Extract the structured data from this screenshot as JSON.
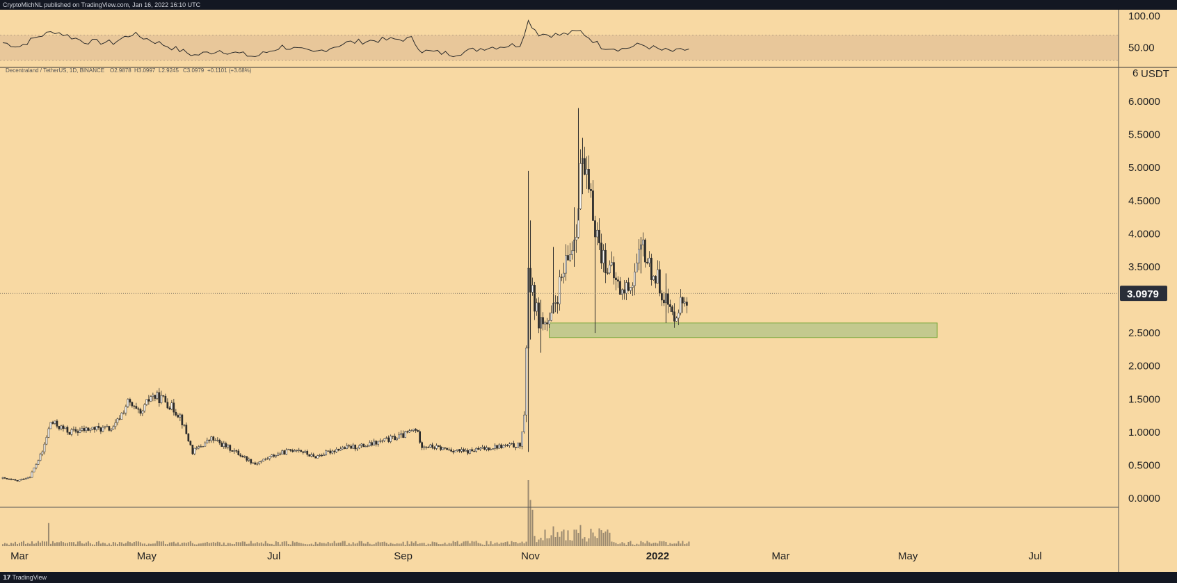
{
  "header": {
    "published_text": "CryptoMichNL published on TradingView.com, Jan 16, 2022 16:10 UTC"
  },
  "footer": {
    "logo": "\u0017",
    "brand": "TradingView"
  },
  "colors": {
    "background": "#f8d9a3",
    "candle": "#2a2a2a",
    "rsi_band": "#e8c79a",
    "support_zone_fill": "#c3c98e",
    "support_zone_stroke": "#7aa83c",
    "price_label_bg": "#2a2e39"
  },
  "chart_data": {
    "type": "candlestick",
    "symbol_line": "Decentraland / TetherUS, 1D, BINANCE",
    "ohlc": {
      "open": "O2.9878",
      "high": "H3.0997",
      "low": "L2.9245",
      "close": "C3.0979",
      "change": "+0.1101 (+3.68%)"
    },
    "currency_label": "USDT",
    "scale_marker": "6",
    "ylim": [
      -0.4,
      6.5
    ],
    "y_ticks": [
      "6.0000",
      "5.5000",
      "5.0000",
      "4.5000",
      "4.0000",
      "3.5000",
      "2.5000",
      "2.0000",
      "1.5000",
      "1.0000",
      "0.5000",
      "0.0000"
    ],
    "y_tick_values": [
      6.0,
      5.5,
      5.0,
      4.5,
      4.0,
      3.5,
      2.5,
      2.0,
      1.5,
      1.0,
      0.5,
      0.0
    ],
    "last_price_label": "3.0979",
    "last_price": 3.0979,
    "x_ticks": [
      {
        "label": "Mar",
        "date": "2021-03-01",
        "bold": false
      },
      {
        "label": "May",
        "date": "2021-05-01",
        "bold": false
      },
      {
        "label": "Jul",
        "date": "2021-07-01",
        "bold": false
      },
      {
        "label": "Sep",
        "date": "2021-09-01",
        "bold": false
      },
      {
        "label": "Nov",
        "date": "2021-11-01",
        "bold": false
      },
      {
        "label": "2022",
        "date": "2022-01-01",
        "bold": true
      },
      {
        "label": "Mar",
        "date": "2022-03-01",
        "bold": false
      },
      {
        "label": "May",
        "date": "2022-05-01",
        "bold": false
      },
      {
        "label": "Jul",
        "date": "2022-07-01",
        "bold": false
      }
    ],
    "x_range": [
      "2021-02-21",
      "2022-08-10"
    ],
    "support_zone": {
      "from": "2021-11-10",
      "to": "2022-05-15",
      "low": 2.43,
      "high": 2.65
    },
    "price_path": [
      [
        "2021-02-21",
        0.3
      ],
      [
        "2021-02-28",
        0.26
      ],
      [
        "2021-03-06",
        0.33
      ],
      [
        "2021-03-12",
        0.7
      ],
      [
        "2021-03-16",
        1.15
      ],
      [
        "2021-03-25",
        1.0
      ],
      [
        "2021-04-05",
        1.05
      ],
      [
        "2021-04-15",
        1.05
      ],
      [
        "2021-04-22",
        1.45
      ],
      [
        "2021-04-28",
        1.25
      ],
      [
        "2021-05-03",
        1.55
      ],
      [
        "2021-05-09",
        1.5
      ],
      [
        "2021-05-17",
        1.25
      ],
      [
        "2021-05-23",
        0.7
      ],
      [
        "2021-06-01",
        0.9
      ],
      [
        "2021-06-10",
        0.75
      ],
      [
        "2021-06-22",
        0.52
      ],
      [
        "2021-07-01",
        0.65
      ],
      [
        "2021-07-12",
        0.75
      ],
      [
        "2021-07-20",
        0.62
      ],
      [
        "2021-08-01",
        0.75
      ],
      [
        "2021-08-15",
        0.8
      ],
      [
        "2021-09-01",
        0.95
      ],
      [
        "2021-09-07",
        1.05
      ],
      [
        "2021-09-10",
        0.8
      ],
      [
        "2021-09-20",
        0.75
      ],
      [
        "2021-10-01",
        0.7
      ],
      [
        "2021-10-15",
        0.78
      ],
      [
        "2021-10-27",
        0.8
      ],
      [
        "2021-10-29",
        1.2
      ],
      [
        "2021-10-31",
        3.5
      ],
      [
        "2021-11-01",
        3.2
      ],
      [
        "2021-11-05",
        2.7
      ],
      [
        "2021-11-10",
        2.6
      ],
      [
        "2021-11-15",
        3.2
      ],
      [
        "2021-11-20",
        3.7
      ],
      [
        "2021-11-23",
        4.1
      ],
      [
        "2021-11-25",
        5.1
      ],
      [
        "2021-11-27",
        4.9
      ],
      [
        "2021-12-01",
        4.3
      ],
      [
        "2021-12-05",
        3.7
      ],
      [
        "2021-12-10",
        3.4
      ],
      [
        "2021-12-15",
        3.1
      ],
      [
        "2021-12-20",
        3.3
      ],
      [
        "2021-12-25",
        3.8
      ],
      [
        "2021-12-28",
        3.5
      ],
      [
        "2022-01-01",
        3.3
      ],
      [
        "2022-01-05",
        3.0
      ],
      [
        "2022-01-08",
        2.75
      ],
      [
        "2022-01-12",
        2.95
      ],
      [
        "2022-01-16",
        3.1
      ]
    ],
    "spikes": [
      [
        "2021-10-31",
        0.7,
        4.95
      ],
      [
        "2021-11-01",
        2.4,
        4.2
      ],
      [
        "2021-11-06",
        2.2,
        3.0
      ],
      [
        "2021-11-12",
        2.8,
        3.8
      ],
      [
        "2021-11-22",
        3.5,
        4.4
      ],
      [
        "2021-11-24",
        4.2,
        5.9
      ],
      [
        "2021-11-26",
        4.6,
        5.45
      ],
      [
        "2021-12-02",
        2.5,
        4.0
      ],
      [
        "2021-12-24",
        3.4,
        3.95
      ],
      [
        "2022-01-05",
        2.65,
        3.4
      ]
    ],
    "volume_spikes": [
      [
        "2021-03-15",
        0.35
      ],
      [
        "2021-10-31",
        1.0
      ],
      [
        "2021-11-01",
        0.7
      ],
      [
        "2021-11-02",
        0.55
      ],
      [
        "2021-11-08",
        0.25
      ],
      [
        "2021-11-12",
        0.3
      ],
      [
        "2021-11-25",
        0.32
      ],
      [
        "2021-12-02",
        0.15
      ]
    ],
    "rsi": {
      "ylim": [
        20,
        110
      ],
      "y_ticks": [
        "100.00",
        "50.00"
      ],
      "y_tick_values": [
        100,
        50
      ],
      "band": [
        30,
        70
      ],
      "path": [
        [
          "2021-02-21",
          58
        ],
        [
          "2021-03-01",
          52
        ],
        [
          "2021-03-10",
          68
        ],
        [
          "2021-03-18",
          76
        ],
        [
          "2021-04-01",
          60
        ],
        [
          "2021-04-15",
          58
        ],
        [
          "2021-04-24",
          72
        ],
        [
          "2021-05-03",
          62
        ],
        [
          "2021-05-15",
          48
        ],
        [
          "2021-05-24",
          38
        ],
        [
          "2021-06-05",
          46
        ],
        [
          "2021-06-22",
          36
        ],
        [
          "2021-07-05",
          52
        ],
        [
          "2021-07-20",
          42
        ],
        [
          "2021-08-05",
          58
        ],
        [
          "2021-08-20",
          62
        ],
        [
          "2021-09-05",
          64
        ],
        [
          "2021-09-10",
          45
        ],
        [
          "2021-09-25",
          40
        ],
        [
          "2021-10-10",
          50
        ],
        [
          "2021-10-27",
          55
        ],
        [
          "2021-10-31",
          92
        ],
        [
          "2021-11-05",
          72
        ],
        [
          "2021-11-15",
          70
        ],
        [
          "2021-11-25",
          76
        ],
        [
          "2021-12-05",
          52
        ],
        [
          "2021-12-15",
          48
        ],
        [
          "2021-12-24",
          55
        ],
        [
          "2022-01-03",
          46
        ],
        [
          "2022-01-10",
          44
        ],
        [
          "2022-01-16",
          48
        ]
      ]
    }
  }
}
